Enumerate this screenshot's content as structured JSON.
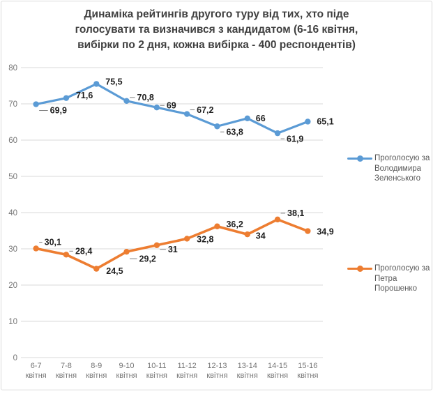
{
  "title_lines": [
    "Динаміка рейтингів другого туру від тих, хто піде",
    "голосувати та визначився з кандидатом (6-16 квітня,",
    "вибірки по 2 дня, кожна вибірка - 400 респондентів)"
  ],
  "colors": {
    "grid": "#d9d9d9",
    "axis_text": "#757575",
    "data_label": "#1f1f1f",
    "title_text": "#404040",
    "legend_text": "#595959",
    "leader_line": "#808080",
    "frame_border": "#d9d9d9"
  },
  "chart_data": {
    "type": "line",
    "title": "Динаміка рейтингів другого туру від тих, хто піде голосувати та визначився з кандидатом (6-16 квітня, вибірки по 2 дня, кожна вибірка - 400 респондентів)",
    "categories": [
      "6-7 квітня",
      "7-8 квітня",
      "8-9 квітня",
      "9-10 квітня",
      "10-11 квітня",
      "11-12 квітня",
      "12-13 квітня",
      "13-14 квітня",
      "14-15 квітня",
      "15-16 квітня"
    ],
    "series": [
      {
        "name": "Проголосую за Володимира Зеленського",
        "color": "#5B9BD5",
        "stroke_width": 3.2,
        "values": [
          69.9,
          71.6,
          75.5,
          70.8,
          69,
          67.2,
          63.8,
          66,
          61.9,
          65.1
        ],
        "label_offsets": [
          [
            20,
            9
          ],
          [
            14,
            -4
          ],
          [
            13,
            -3
          ],
          [
            15,
            -5
          ],
          [
            14,
            -3
          ],
          [
            14,
            -6
          ],
          [
            13,
            8
          ],
          [
            12,
            0
          ],
          [
            13,
            8
          ],
          [
            13,
            0
          ]
        ],
        "leaders": [
          true,
          false,
          false,
          true,
          true,
          true,
          true,
          false,
          true,
          false
        ]
      },
      {
        "name": "Проголосую за Петра Порошенко",
        "color": "#ED7D31",
        "stroke_width": 3.6,
        "values": [
          30.1,
          28.4,
          24.5,
          29.2,
          31,
          32.8,
          36.2,
          34,
          38.1,
          34.9
        ],
        "label_offsets": [
          [
            12,
            -9
          ],
          [
            13,
            -5
          ],
          [
            14,
            3
          ],
          [
            18,
            10
          ],
          [
            16,
            6
          ],
          [
            14,
            1
          ],
          [
            13,
            -3
          ],
          [
            12,
            2
          ],
          [
            14,
            -9
          ],
          [
            13,
            1
          ]
        ],
        "leaders": [
          true,
          true,
          false,
          true,
          true,
          false,
          false,
          false,
          true,
          false
        ]
      }
    ],
    "ylim": [
      0,
      80
    ],
    "ytick_step": 10,
    "grid": true,
    "legend_position": "right",
    "xlabel": "",
    "ylabel": ""
  }
}
